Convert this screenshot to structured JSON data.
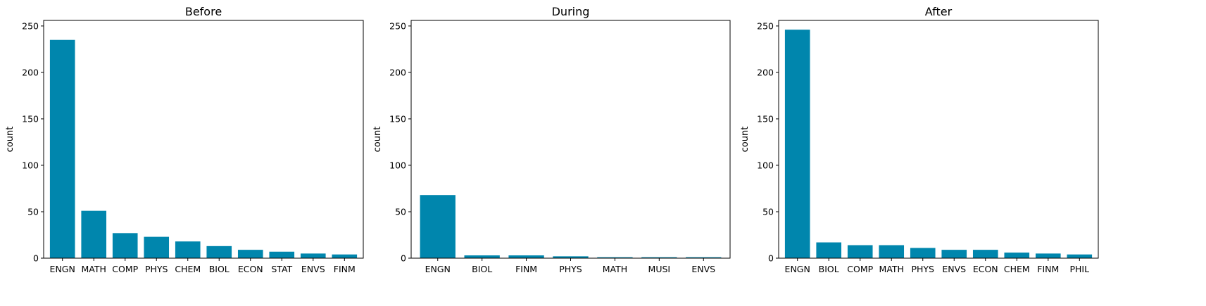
{
  "chart_data": [
    {
      "type": "bar",
      "title": "Before",
      "xlabel": "",
      "ylabel": "count",
      "ylim": [
        0,
        256
      ],
      "yticks": [
        0,
        50,
        100,
        150,
        200,
        250
      ],
      "color": "#0086ad",
      "categories": [
        "ENGN",
        "MATH",
        "COMP",
        "PHYS",
        "CHEM",
        "BIOL",
        "ECON",
        "STAT",
        "ENVS",
        "FINM"
      ],
      "values": [
        235,
        51,
        27,
        23,
        18,
        13,
        9,
        7,
        5,
        4
      ]
    },
    {
      "type": "bar",
      "title": "During",
      "xlabel": "",
      "ylabel": "count",
      "ylim": [
        0,
        256
      ],
      "yticks": [
        0,
        50,
        100,
        150,
        200,
        250
      ],
      "color": "#0086ad",
      "categories": [
        "ENGN",
        "BIOL",
        "FINM",
        "PHYS",
        "MATH",
        "MUSI",
        "ENVS"
      ],
      "values": [
        68,
        3,
        3,
        2,
        1,
        1,
        1
      ]
    },
    {
      "type": "bar",
      "title": "After",
      "xlabel": "",
      "ylabel": "count",
      "ylim": [
        0,
        256
      ],
      "yticks": [
        0,
        50,
        100,
        150,
        200,
        250
      ],
      "color": "#0086ad",
      "categories": [
        "ENGN",
        "BIOL",
        "COMP",
        "MATH",
        "PHYS",
        "ENVS",
        "ECON",
        "CHEM",
        "FINM",
        "PHIL"
      ],
      "values": [
        246,
        17,
        14,
        14,
        11,
        9,
        9,
        6,
        5,
        4
      ]
    }
  ]
}
